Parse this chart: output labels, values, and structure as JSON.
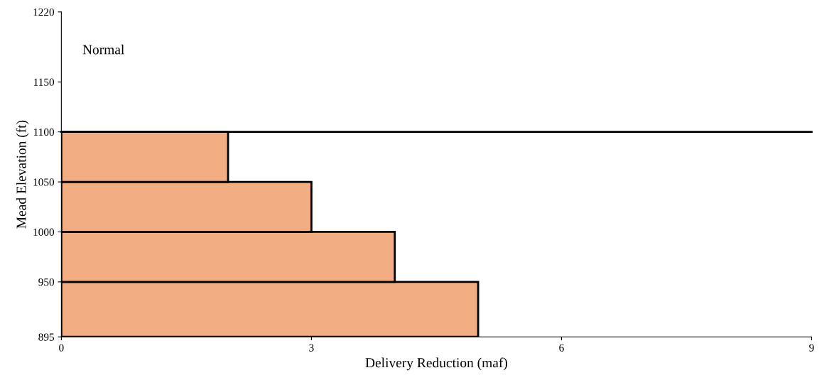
{
  "chart_data": {
    "type": "histogram",
    "orientation": "horizontal",
    "bins": [
      895,
      950,
      1000,
      1050,
      1100
    ],
    "values": [
      5,
      4,
      3,
      2
    ],
    "color": "#f2ae82",
    "xlabel": "Delivery Reduction (maf)",
    "ylabel": "Mead Elevation (ft)",
    "xlim": [
      0,
      9
    ],
    "xticks": [
      0,
      3,
      6,
      9
    ],
    "ylim": [
      895,
      1220
    ],
    "yticks": [
      895,
      950,
      1000,
      1050,
      1100,
      1150,
      1220
    ],
    "ref_lines": [
      {
        "axis": "y",
        "value": 1100,
        "color": "#000000"
      }
    ],
    "annotations": [
      "Normal"
    ],
    "grid": false,
    "legend": false
  }
}
